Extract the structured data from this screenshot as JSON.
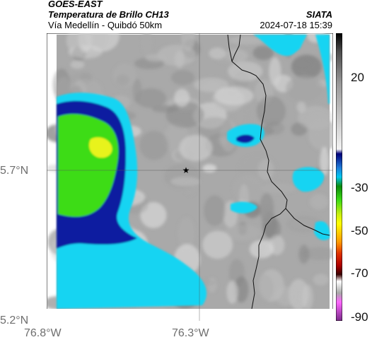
{
  "header": {
    "satellite": "GOES-EAST",
    "product": "Temperatura de Brillo CH13",
    "region": "Vía Medellín - Quibdó 50km",
    "agency": "SIATA",
    "datetime": "2024-07-18 15:39"
  },
  "map": {
    "latitude_labels": [
      "5.7°N",
      "5.2°N"
    ],
    "longitude_labels": [
      "76.8°W",
      "76.3°W"
    ],
    "marker": "star-marker"
  },
  "colorbar": {
    "tick_labels": [
      "20",
      "-30",
      "-50",
      "-70",
      "-90"
    ],
    "stops": [
      {
        "v": 32,
        "c": "#000000"
      },
      {
        "v": 24,
        "c": "#4d4d4d"
      },
      {
        "v": 10,
        "c": "#9a9a9a"
      },
      {
        "v": -18,
        "c": "#f2f2f2"
      },
      {
        "v": -20,
        "c": "#00007a"
      },
      {
        "v": -26,
        "c": "#1e7ad8"
      },
      {
        "v": -30,
        "c": "#00c8f0"
      },
      {
        "v": -34,
        "c": "#0a8a0a"
      },
      {
        "v": -40,
        "c": "#3ddc14"
      },
      {
        "v": -46,
        "c": "#c8ee10"
      },
      {
        "v": -50,
        "c": "#ffff00"
      },
      {
        "v": -58,
        "c": "#ff9a00"
      },
      {
        "v": -63,
        "c": "#e03000"
      },
      {
        "v": -68,
        "c": "#b00000"
      },
      {
        "v": -72,
        "c": "#3a0000"
      },
      {
        "v": -75,
        "c": "#ffffff"
      },
      {
        "v": -80,
        "c": "#a8a8a8"
      },
      {
        "v": -84,
        "c": "#ff66ff"
      },
      {
        "v": -92,
        "c": "#7a2a8a"
      }
    ]
  },
  "colors": {
    "gray_background": "#a9a9a9",
    "cold_deep": "#0b1fa0",
    "cold_cyan": "#18d4f2",
    "cold_green": "#3ddc14",
    "cold_yellow": "#e8f31a",
    "border_line": "#111111"
  }
}
